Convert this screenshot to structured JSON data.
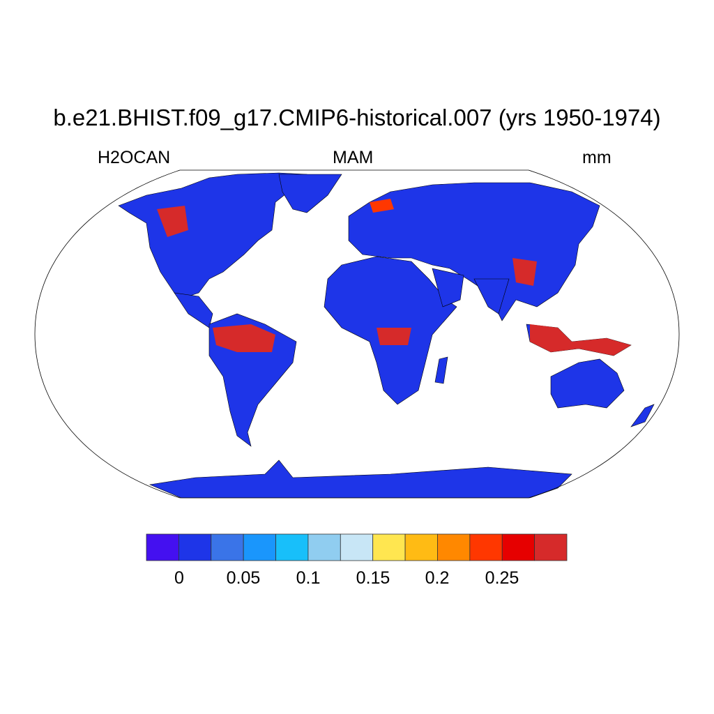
{
  "title": "b.e21.BHIST.f09_g17.CMIP6-historical.007 (yrs 1950-1974)",
  "left_string": "H2OCAN",
  "center_string": "MAM",
  "right_string": "mm",
  "map": {
    "projection": "Robinson",
    "land_base_color": "#1e35e8",
    "high_value_color": "#d62a2a"
  },
  "colorbar": {
    "colors": [
      "#4410f0",
      "#1e35e8",
      "#3a74e8",
      "#1a96fc",
      "#18bffa",
      "#90cdf0",
      "#c8e6f6",
      "#ffe650",
      "#ffbb14",
      "#ff8800",
      "#ff3700",
      "#e60000",
      "#d62a2a"
    ],
    "levels": [
      0,
      0.025,
      0.05,
      0.075,
      0.1,
      0.125,
      0.15,
      0.175,
      0.2,
      0.225,
      0.25,
      0.275
    ],
    "tick_labels": [
      "0",
      "0.05",
      "0.1",
      "0.15",
      "0.2",
      "0.25"
    ]
  }
}
